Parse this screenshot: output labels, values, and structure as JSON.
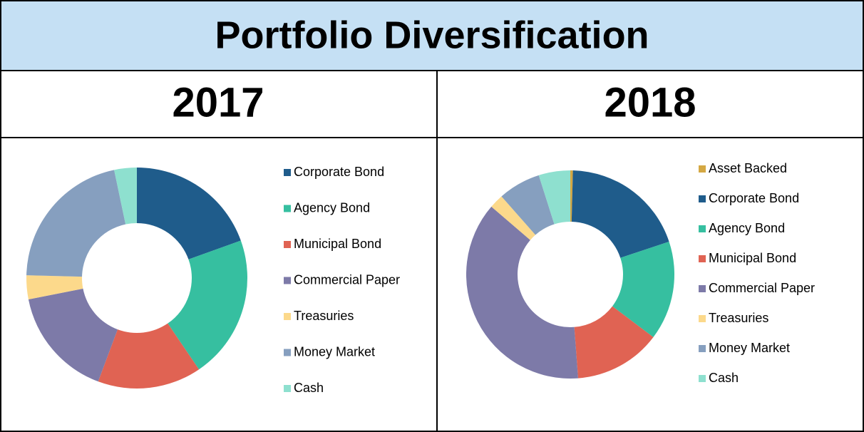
{
  "header": {
    "title": "Portfolio Diversification"
  },
  "chart_data": [
    {
      "type": "donut",
      "title": "2017",
      "categories": [
        "Corporate Bond",
        "Agency Bond",
        "Municipal Bond",
        "Commercial Paper",
        "Treasuries",
        "Money Market",
        "Cash"
      ],
      "values": [
        19.5,
        21,
        15.2,
        16.2,
        3.5,
        21.3,
        3.3
      ],
      "colors": [
        "#1f5c8b",
        "#36bfa0",
        "#e06353",
        "#7d7aa8",
        "#fcd98b",
        "#869fbf",
        "#8ee0cf"
      ],
      "legend": "right"
    },
    {
      "type": "donut",
      "title": "2018",
      "categories": [
        "Asset Backed",
        "Corporate Bond",
        "Agency Bond",
        "Municipal Bond",
        "Commercial Paper",
        "Treasuries",
        "Money Market",
        "Cash"
      ],
      "values": [
        0.4,
        19.5,
        15.4,
        13.5,
        37.5,
        2.2,
        6.6,
        4.9
      ],
      "colors": [
        "#d4a843",
        "#1f5c8b",
        "#36bfa0",
        "#e06353",
        "#7d7aa8",
        "#fcd98b",
        "#869fbf",
        "#8ee0cf"
      ],
      "legend": "right"
    }
  ]
}
